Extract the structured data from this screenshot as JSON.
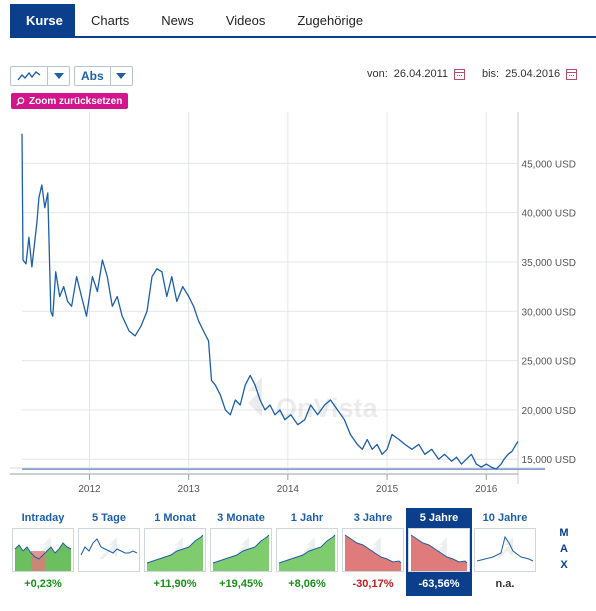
{
  "tabs": [
    "Kurse",
    "Charts",
    "News",
    "Videos",
    "Zugehörige"
  ],
  "toolbar": {
    "chart_type_icon": "line-chart-icon",
    "scale_label": "Abs"
  },
  "dates": {
    "from_label": "von:",
    "from_value": "26.04.2011",
    "to_label": "bis:",
    "to_value": "25.04.2016"
  },
  "zoom_reset_label": "Zoom zurücksetzen",
  "watermark": "OnVista",
  "chart_data": {
    "type": "line",
    "x_ticks": [
      "2012",
      "2013",
      "2014",
      "2015",
      "2016"
    ],
    "y_tick_labels": [
      "45,000 USD",
      "40,000 USD",
      "35,000 USD",
      "30,000 USD",
      "25,000 USD",
      "20,000 USD",
      "15,000 USD"
    ],
    "y_ticks": [
      45,
      40,
      35,
      30,
      25,
      20,
      15
    ],
    "ylim": [
      13.5,
      50
    ],
    "x_range": [
      2011.32,
      2016.32
    ],
    "series": [
      {
        "color": "#1d5fa8",
        "points": [
          [
            2011.32,
            48.0
          ],
          [
            2011.33,
            35.2
          ],
          [
            2011.36,
            34.8
          ],
          [
            2011.39,
            37.5
          ],
          [
            2011.42,
            34.5
          ],
          [
            2011.44,
            36.3
          ],
          [
            2011.47,
            39.0
          ],
          [
            2011.49,
            41.5
          ],
          [
            2011.52,
            42.8
          ],
          [
            2011.55,
            40.5
          ],
          [
            2011.58,
            42.0
          ],
          [
            2011.61,
            30.0
          ],
          [
            2011.63,
            29.5
          ],
          [
            2011.66,
            34.0
          ],
          [
            2011.7,
            31.5
          ],
          [
            2011.74,
            32.5
          ],
          [
            2011.78,
            31.0
          ],
          [
            2011.82,
            30.5
          ],
          [
            2011.87,
            33.5
          ],
          [
            2011.92,
            31.5
          ],
          [
            2011.97,
            29.5
          ],
          [
            2012.03,
            33.5
          ],
          [
            2012.08,
            32.0
          ],
          [
            2012.13,
            35.2
          ],
          [
            2012.18,
            33.5
          ],
          [
            2012.23,
            30.5
          ],
          [
            2012.28,
            31.5
          ],
          [
            2012.33,
            29.5
          ],
          [
            2012.4,
            28.0
          ],
          [
            2012.46,
            27.5
          ],
          [
            2012.52,
            28.5
          ],
          [
            2012.58,
            30.0
          ],
          [
            2012.63,
            33.5
          ],
          [
            2012.68,
            34.3
          ],
          [
            2012.73,
            34.0
          ],
          [
            2012.78,
            31.5
          ],
          [
            2012.83,
            33.5
          ],
          [
            2012.88,
            31.0
          ],
          [
            2012.94,
            32.5
          ],
          [
            2013.0,
            31.5
          ],
          [
            2013.05,
            30.5
          ],
          [
            2013.1,
            29.0
          ],
          [
            2013.15,
            28.0
          ],
          [
            2013.2,
            27.0
          ],
          [
            2013.23,
            23.0
          ],
          [
            2013.27,
            22.5
          ],
          [
            2013.32,
            21.5
          ],
          [
            2013.37,
            20.0
          ],
          [
            2013.42,
            19.5
          ],
          [
            2013.47,
            21.0
          ],
          [
            2013.52,
            20.5
          ],
          [
            2013.57,
            22.5
          ],
          [
            2013.62,
            23.5
          ],
          [
            2013.67,
            22.5
          ],
          [
            2013.72,
            21.0
          ],
          [
            2013.77,
            20.0
          ],
          [
            2013.82,
            20.5
          ],
          [
            2013.87,
            19.5
          ],
          [
            2013.92,
            20.0
          ],
          [
            2013.97,
            19.0
          ],
          [
            2014.03,
            19.5
          ],
          [
            2014.1,
            18.5
          ],
          [
            2014.17,
            19.0
          ],
          [
            2014.23,
            20.5
          ],
          [
            2014.3,
            19.5
          ],
          [
            2014.37,
            20.5
          ],
          [
            2014.43,
            21.0
          ],
          [
            2014.5,
            20.0
          ],
          [
            2014.57,
            19.0
          ],
          [
            2014.63,
            17.5
          ],
          [
            2014.7,
            16.5
          ],
          [
            2014.75,
            16.0
          ],
          [
            2014.8,
            17.0
          ],
          [
            2014.85,
            16.0
          ],
          [
            2014.9,
            16.5
          ],
          [
            2014.95,
            15.5
          ],
          [
            2015.0,
            16.0
          ],
          [
            2015.05,
            17.5
          ],
          [
            2015.12,
            17.0
          ],
          [
            2015.18,
            16.5
          ],
          [
            2015.25,
            16.0
          ],
          [
            2015.32,
            16.5
          ],
          [
            2015.38,
            15.5
          ],
          [
            2015.45,
            16.0
          ],
          [
            2015.52,
            15.0
          ],
          [
            2015.58,
            15.5
          ],
          [
            2015.65,
            14.8
          ],
          [
            2015.7,
            15.2
          ],
          [
            2015.75,
            14.5
          ],
          [
            2015.8,
            15.0
          ],
          [
            2015.85,
            15.5
          ],
          [
            2015.9,
            14.5
          ],
          [
            2015.95,
            14.2
          ],
          [
            2016.0,
            14.5
          ],
          [
            2016.05,
            14.2
          ],
          [
            2016.1,
            14.0
          ],
          [
            2016.15,
            14.5
          ],
          [
            2016.18,
            15.0
          ],
          [
            2016.22,
            15.5
          ],
          [
            2016.26,
            15.8
          ],
          [
            2016.3,
            16.5
          ],
          [
            2016.32,
            16.8
          ]
        ]
      }
    ],
    "reference_line": 14.0
  },
  "ranges": [
    {
      "label": "Intraday",
      "value": "+0,23%",
      "trend": "pos",
      "selected": false,
      "spark": "intraday"
    },
    {
      "label": "5 Tage",
      "value": "",
      "trend": "na",
      "selected": false,
      "spark": "flat"
    },
    {
      "label": "1 Monat",
      "value": "+11,90%",
      "trend": "pos",
      "selected": false,
      "spark": "up"
    },
    {
      "label": "3 Monate",
      "value": "+19,45%",
      "trend": "pos",
      "selected": false,
      "spark": "up"
    },
    {
      "label": "1 Jahr",
      "value": "+8,06%",
      "trend": "pos",
      "selected": false,
      "spark": "up"
    },
    {
      "label": "3 Jahre",
      "value": "-30,17%",
      "trend": "neg",
      "selected": false,
      "spark": "down"
    },
    {
      "label": "5 Jahre",
      "value": "-63,56%",
      "trend": "neg",
      "selected": true,
      "spark": "down"
    },
    {
      "label": "10 Jahre",
      "value": "n.a.",
      "trend": "na",
      "selected": false,
      "spark": "plain"
    }
  ],
  "max_label": [
    "M",
    "A",
    "X"
  ],
  "colors": {
    "brand": "#0b3f8c",
    "line": "#1d5fa8",
    "zoom": "#d3158b",
    "positive": "#179017",
    "negative": "#c21d1d"
  }
}
